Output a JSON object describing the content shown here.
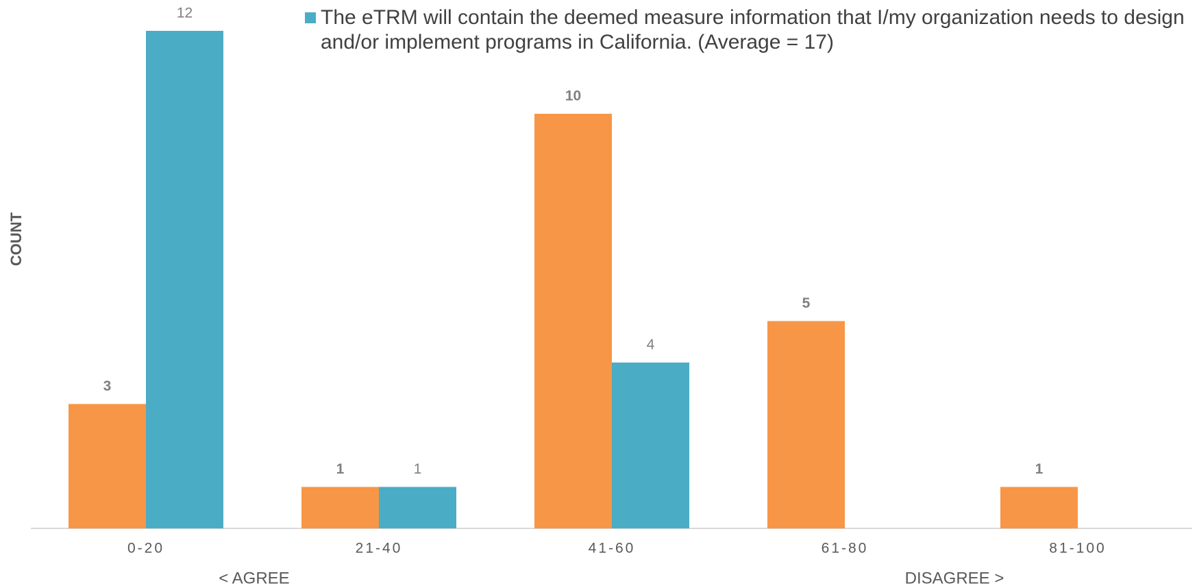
{
  "chart_data": {
    "type": "bar",
    "categories": [
      "0-20",
      "21-40",
      "41-60",
      "61-80",
      "81-100"
    ],
    "series": [
      {
        "color": "#f79646",
        "values": [
          3,
          1,
          10,
          5,
          1
        ]
      },
      {
        "name": "The eTRM will contain the deemed measure information that I/my organization needs to design and/or implement programs in California. (Average = 17)",
        "color": "#4bacc6",
        "values": [
          12,
          1,
          4,
          null,
          null
        ]
      }
    ],
    "ylabel": "COUNT",
    "annotations": [
      "< AGREE",
      "DISAGREE >"
    ],
    "ylim": [
      0,
      12
    ]
  }
}
